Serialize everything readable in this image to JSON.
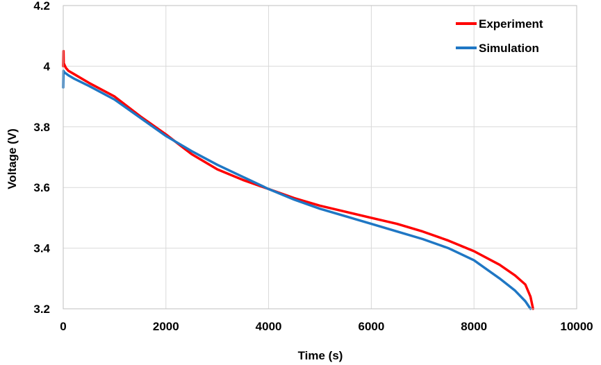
{
  "chart_data": {
    "type": "line",
    "title": "",
    "xlabel": "Time (s)",
    "ylabel": "Voltage (V)",
    "xlim": [
      0,
      10000
    ],
    "ylim": [
      3.2,
      4.2
    ],
    "xticks": [
      0,
      2000,
      4000,
      6000,
      8000,
      10000
    ],
    "yticks": [
      3.2,
      3.4,
      3.6,
      3.8,
      4.0,
      4.2
    ],
    "xtick_labels": [
      "0",
      "2000",
      "4000",
      "6000",
      "8000",
      "10000"
    ],
    "ytick_labels": [
      "3.2",
      "3.4",
      "3.6",
      "3.8",
      "4",
      "4.2"
    ],
    "grid": true,
    "legend_position": "top-right",
    "series": [
      {
        "name": "Experiment",
        "color": "#ff0000",
        "x": [
          0,
          5,
          10,
          50,
          100,
          200,
          500,
          1000,
          1500,
          2000,
          2500,
          3000,
          3500,
          4000,
          4500,
          5000,
          5500,
          6000,
          6500,
          7000,
          7500,
          8000,
          8500,
          8800,
          9000,
          9100,
          9150
        ],
        "y": [
          4.0,
          4.05,
          4.01,
          3.995,
          3.985,
          3.975,
          3.945,
          3.9,
          3.835,
          3.775,
          3.71,
          3.66,
          3.625,
          3.595,
          3.565,
          3.54,
          3.52,
          3.5,
          3.48,
          3.455,
          3.425,
          3.39,
          3.345,
          3.31,
          3.28,
          3.24,
          3.2
        ]
      },
      {
        "name": "Simulation",
        "color": "#1f77c4",
        "x": [
          0,
          5,
          20,
          100,
          200,
          500,
          1000,
          1500,
          2000,
          2500,
          3000,
          3500,
          4000,
          4500,
          5000,
          5500,
          6000,
          6500,
          7000,
          7500,
          8000,
          8500,
          8800,
          9000,
          9100
        ],
        "y": [
          3.93,
          3.985,
          3.98,
          3.97,
          3.96,
          3.935,
          3.89,
          3.83,
          3.77,
          3.72,
          3.675,
          3.635,
          3.595,
          3.56,
          3.53,
          3.505,
          3.48,
          3.455,
          3.43,
          3.4,
          3.36,
          3.3,
          3.26,
          3.225,
          3.2
        ]
      }
    ]
  }
}
